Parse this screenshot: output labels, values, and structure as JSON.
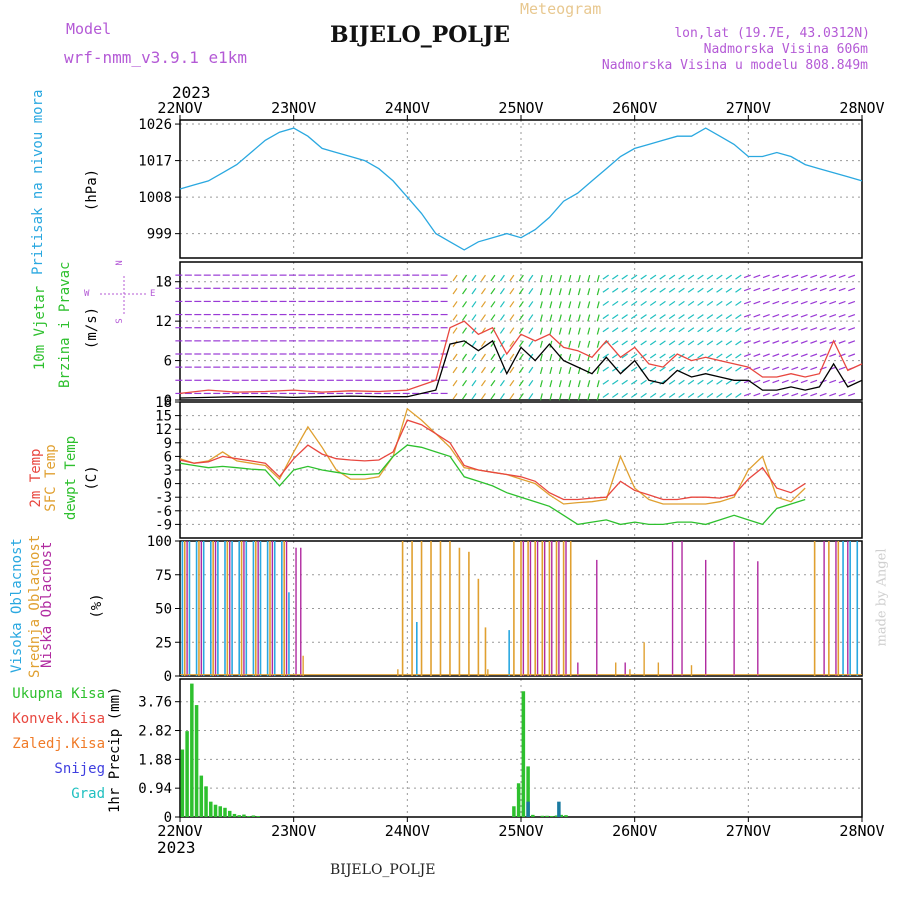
{
  "header": {
    "model_label": "Model",
    "model_name": "wrf-nmm_v3.9.1 e1km",
    "title": "BIJELO_POLJE",
    "subtitle": "Meteogram",
    "lonlat": "lon,lat (19.7E, 43.0312N)",
    "elevation": "Nadmorska Visina 606m",
    "model_elevation": "Nadmorska Visina u modelu 808.849m",
    "year_top": "2023",
    "year_bottom": "2023",
    "footer": "BIJELO_POLJE",
    "credit": "made by Angel"
  },
  "colors": {
    "pressure": "#2aa8e0",
    "wind_speed": "#000000",
    "wind_gust": "#e8473f",
    "temp_2m": "#e8473f",
    "temp_sfc": "#e0a030",
    "dewpoint": "#2ec02e",
    "cloud_high": "#2aa8e0",
    "cloud_mid": "#e0a030",
    "cloud_low": "#b02aa0",
    "precip_total": "#2ec02e",
    "precip_conv": "#e8473f",
    "precip_frozen": "#f07b28",
    "precip_snow": "#4040e0",
    "precip_hail": "#20c0c0"
  },
  "compass": {
    "north": "N",
    "south": "S",
    "west": "W",
    "east": "E"
  },
  "panels": [
    {
      "label": "Pritisak na nivou mora",
      "unit": "(hPa)"
    },
    {
      "label": "10m Vjetar",
      "label2": "Brzina i Pravac",
      "unit": "(m/s)"
    },
    {
      "label": "2m Temp",
      "label2": "SFC Temp",
      "label3": "dewpt Temp",
      "unit": "(C)"
    },
    {
      "label": "Visoka Oblacnost",
      "label2": "Srednja Oblacnost",
      "label3": "Niska Oblacnost",
      "unit": "(%)"
    },
    {
      "legend": [
        "Ukupna Kisa",
        "Konvek.Kisa",
        "Zaledj.Kisa",
        "Snijeg",
        "Grad"
      ],
      "unit": "1hr Precip (mm)"
    }
  ],
  "chart_data": {
    "type": "line",
    "x_ticks": [
      "22NOV",
      "23NOV",
      "24NOV",
      "25NOV",
      "26NOV",
      "27NOV",
      "28NOV"
    ],
    "x_range_hours": [
      0,
      144
    ],
    "pressure": {
      "yticks": [
        "1026",
        "1017",
        "1008",
        "999"
      ],
      "ylim": [
        993,
        1027
      ],
      "x": [
        0,
        3,
        6,
        9,
        12,
        15,
        18,
        21,
        24,
        27,
        30,
        33,
        36,
        39,
        42,
        45,
        48,
        51,
        54,
        57,
        60,
        63,
        66,
        69,
        72,
        75,
        78,
        81,
        84,
        87,
        90,
        93,
        96,
        99,
        102,
        105,
        108,
        111,
        114,
        117,
        120,
        123,
        126,
        129,
        132,
        135,
        138,
        141,
        144
      ],
      "values": [
        1010,
        1011,
        1012,
        1014,
        1016,
        1019,
        1022,
        1024,
        1025,
        1023,
        1020,
        1019,
        1018,
        1017,
        1015,
        1012,
        1008,
        1004,
        999,
        997,
        995,
        997,
        998,
        999,
        998,
        1000,
        1003,
        1007,
        1009,
        1012,
        1015,
        1018,
        1020,
        1021,
        1022,
        1023,
        1023,
        1025,
        1023,
        1021,
        1018,
        1018,
        1019,
        1018,
        1016,
        1015,
        1014,
        1013,
        1012
      ]
    },
    "wind": {
      "yticks": [
        "18",
        "12",
        "6",
        "0"
      ],
      "ylim": [
        0,
        21
      ],
      "x": [
        0,
        6,
        12,
        18,
        24,
        30,
        36,
        42,
        48,
        54,
        57,
        60,
        63,
        66,
        69,
        72,
        75,
        78,
        81,
        84,
        87,
        90,
        93,
        96,
        99,
        102,
        105,
        108,
        111,
        114,
        117,
        120,
        123,
        126,
        129,
        132,
        135,
        138,
        141,
        144
      ],
      "speed": [
        0.3,
        0.4,
        0.5,
        0.5,
        0.4,
        0.5,
        0.6,
        0.5,
        0.5,
        1.5,
        8.5,
        9,
        7.5,
        9,
        4,
        8,
        6,
        8.5,
        6,
        5,
        4,
        6.5,
        4,
        6,
        3,
        2.5,
        4.5,
        3.5,
        4,
        3.5,
        3,
        3,
        1.5,
        1.5,
        2,
        1.5,
        2,
        5.5,
        2,
        3
      ],
      "gust": [
        1,
        1.5,
        1.2,
        1.3,
        1.5,
        1.2,
        1.4,
        1.3,
        1.5,
        3,
        11,
        12,
        10,
        11,
        7,
        10,
        9,
        10,
        8,
        7.5,
        6.5,
        9,
        6.5,
        8,
        5.5,
        5,
        7,
        6,
        6.5,
        6,
        5.5,
        5,
        3.5,
        3.5,
        4,
        3.5,
        4,
        9,
        4.5,
        5.5
      ]
    },
    "temperature": {
      "yticks": [
        "18",
        "15",
        "12",
        "9",
        "6",
        "3",
        "0",
        "-3",
        "-6",
        "-9"
      ],
      "ylim": [
        -12,
        18
      ],
      "x": [
        0,
        3,
        6,
        9,
        12,
        15,
        18,
        21,
        24,
        27,
        30,
        33,
        36,
        39,
        42,
        45,
        48,
        51,
        54,
        57,
        60,
        63,
        66,
        69,
        72,
        75,
        78,
        81,
        84,
        87,
        90,
        93,
        96,
        99,
        102,
        105,
        108,
        111,
        114,
        117,
        120,
        123,
        126,
        129,
        132,
        135,
        138,
        141,
        144
      ],
      "t2m": [
        5.2,
        4.5,
        4.8,
        6,
        5.5,
        5,
        4.5,
        1.5,
        5.5,
        8.5,
        6.5,
        5.5,
        5.2,
        5,
        5.2,
        7,
        14,
        13,
        11,
        9,
        4,
        3,
        2.5,
        2,
        1.5,
        0.5,
        -2,
        -3.5,
        -3.5,
        -3.2,
        -3,
        0.5,
        -1.5,
        -2.5,
        -3.5,
        -3.5,
        -3,
        -3,
        -3.2,
        -2.5,
        1,
        3.5,
        -1,
        -2,
        0
      ],
      "tsfc": [
        5.5,
        4.5,
        5,
        7,
        5,
        4.5,
        4,
        1,
        7,
        12.5,
        8,
        3,
        1,
        1,
        1.5,
        6,
        16.5,
        14,
        11,
        8,
        3.5,
        3,
        2.5,
        2,
        1,
        0,
        -2.5,
        -4.5,
        -4.2,
        -4,
        -3.5,
        6,
        -1,
        -3.5,
        -4.5,
        -4.5,
        -4.5,
        -4.5,
        -4,
        -3,
        3,
        6,
        -3,
        -4,
        -1
      ],
      "dewpt": [
        4.5,
        4,
        3.5,
        3.8,
        3.5,
        3.2,
        3,
        -0.5,
        3,
        3.8,
        3,
        2.5,
        2,
        2,
        2.2,
        6,
        8.5,
        8,
        7,
        6,
        1.5,
        0.5,
        -0.5,
        -2,
        -3,
        -4,
        -5,
        -7,
        -9,
        -8.5,
        -8,
        -9,
        -8.5,
        -9,
        -9,
        -8.5,
        -8.5,
        -9,
        -8,
        -7,
        -8,
        -9,
        -5.5,
        -4.5,
        -3.5
      ]
    },
    "clouds": {
      "yticks": [
        "100",
        "75",
        "50",
        "25",
        "0"
      ],
      "ylim": [
        0,
        100
      ],
      "bar_hours_high": [
        0.5,
        2,
        3.5,
        5,
        6.5,
        8,
        9.5,
        11,
        12.5,
        14,
        15.5,
        17,
        18.5,
        20,
        21.5,
        23,
        50,
        69.5,
        140,
        141.5,
        143
      ],
      "bar_values_high": [
        100,
        100,
        100,
        100,
        100,
        100,
        100,
        100,
        100,
        100,
        100,
        100,
        100,
        100,
        100,
        62,
        40,
        34,
        100,
        100,
        100
      ],
      "bar_hours_mid": [
        1,
        4,
        7,
        10,
        13,
        16,
        19,
        22,
        47,
        49,
        51,
        53,
        55,
        57,
        59,
        61,
        63,
        64.5,
        70.5,
        72,
        73.5,
        75,
        76.5,
        78,
        79.5,
        81,
        82.5,
        134,
        137,
        139
      ],
      "bar_values_mid": [
        100,
        100,
        100,
        100,
        100,
        100,
        100,
        100,
        100,
        100,
        100,
        100,
        100,
        100,
        95,
        92,
        72,
        36,
        100,
        100,
        100,
        100,
        100,
        100,
        100,
        100,
        100,
        100,
        100,
        100
      ],
      "bar_hours_low": [
        1.5,
        4.5,
        7.5,
        10.5,
        13.5,
        16.5,
        19.5,
        22.5,
        24.5,
        25.5,
        72.5,
        74,
        75.5,
        77,
        78.5,
        80,
        81.5,
        84,
        88,
        94,
        104,
        106,
        111,
        117,
        122,
        136,
        138.5,
        141
      ],
      "bar_values_low": [
        100,
        100,
        100,
        100,
        100,
        100,
        100,
        100,
        95,
        95,
        100,
        100,
        100,
        100,
        100,
        100,
        100,
        10,
        86,
        10,
        100,
        100,
        86,
        100,
        85,
        100,
        100,
        100
      ],
      "bar_hours_trace": [
        26,
        46,
        65,
        92,
        95,
        98,
        101,
        108
      ],
      "bar_values_trace": [
        15,
        5,
        5,
        10,
        5,
        25,
        10,
        8
      ]
    },
    "precip": {
      "yticks": [
        "3.76",
        "2.82",
        "1.88",
        "0.94",
        "0"
      ],
      "ylim": [
        0,
        4.5
      ],
      "bar_hours": [
        0.5,
        1.5,
        2.5,
        3.5,
        4.5,
        5.5,
        6.5,
        7.5,
        8.5,
        9.5,
        10.5,
        11.5,
        12.5,
        13.5,
        14.5,
        15.5,
        16.5,
        70.5,
        71.5,
        72.5,
        73.5,
        74.5,
        76.5,
        77.5,
        78.5,
        79.5,
        80.5,
        81.5
      ],
      "total": [
        2.2,
        2.8,
        4.35,
        3.65,
        1.35,
        1,
        0.5,
        0.4,
        0.35,
        0.3,
        0.2,
        0.1,
        0.06,
        0.08,
        0.03,
        0.05,
        0.03,
        0.35,
        1.1,
        4.1,
        1.65,
        0.07,
        0.04,
        0.04,
        0.03,
        0.05,
        0.07,
        0.06
      ],
      "hail_hours": [
        73.5,
        80
      ],
      "hail_values": [
        0.5,
        0.5
      ]
    }
  }
}
